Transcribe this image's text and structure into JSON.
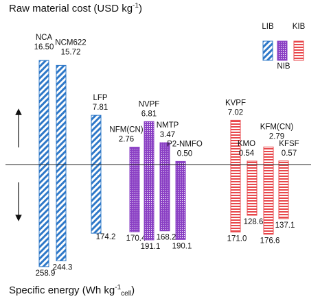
{
  "chart_data": {
    "type": "bar",
    "top_axis_title": "Raw material cost (USD kg",
    "top_axis_title_sup": "-1",
    "top_axis_title_end": ")",
    "bottom_axis_title": "Specific energy (Wh kg",
    "bottom_axis_title_sup": "-1",
    "bottom_axis_title_sub": "cell",
    "bottom_axis_title_end": ")",
    "legend": {
      "placement": "top-right",
      "entries": [
        {
          "name": "LIB",
          "pattern": "diagonal-stripes",
          "color": "#2e78c8"
        },
        {
          "name": "NIB",
          "pattern": "dots",
          "color": "#8a3fc4"
        },
        {
          "name": "KIB",
          "pattern": "horizontal-stripes",
          "color": "#e8474b"
        }
      ]
    },
    "materials": [
      {
        "name": "NCA",
        "group": "LIB",
        "cost": "16.50",
        "energy": "258.9"
      },
      {
        "name": "NCM622",
        "group": "LIB",
        "cost": "15.72",
        "energy": "244.3"
      },
      {
        "name": "LFP",
        "group": "LIB",
        "cost": "7.81",
        "energy": "174.2"
      },
      {
        "name": "NFM(CN)",
        "group": "NIB",
        "cost": "2.76",
        "energy": "170.4"
      },
      {
        "name": "NVPF",
        "group": "NIB",
        "cost": "6.81",
        "energy": "191.1"
      },
      {
        "name": "NMTP",
        "group": "NIB",
        "cost": "3.47",
        "energy": "168.2"
      },
      {
        "name": "P2-NMFO",
        "group": "NIB",
        "cost": "0.50",
        "energy": "190.1"
      },
      {
        "name": "KVPF",
        "group": "KIB",
        "cost": "7.02",
        "energy": "171.0"
      },
      {
        "name": "KMO",
        "group": "KIB",
        "cost": "0.54",
        "energy": "128.6"
      },
      {
        "name": "KFM(CN)",
        "group": "KIB",
        "cost": "2.79",
        "energy": "176.6"
      },
      {
        "name": "KFSF",
        "group": "KIB",
        "cost": "0.57",
        "energy": "137.1"
      }
    ]
  }
}
